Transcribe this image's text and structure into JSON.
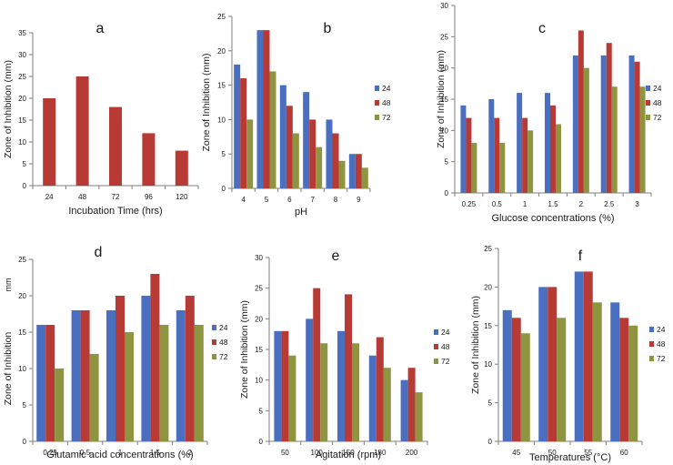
{
  "colors": {
    "s24": "#4a6fc1",
    "s48": "#b83a35",
    "s72": "#8f9440",
    "axis": "#7f7f7f",
    "text": "#1a1a1a"
  },
  "chart_data": [
    {
      "id": "a",
      "type": "bar",
      "panel_label": "a",
      "xlabel": "Incubation Time (hrs)",
      "ylabel": "Zone of Inhibition (mm)",
      "categories": [
        "24",
        "48",
        "72",
        "96",
        "120"
      ],
      "yticks": [
        "0",
        "5",
        "10",
        "15",
        "20",
        "25",
        "30",
        "35"
      ],
      "ylim": [
        0,
        35
      ],
      "legend": [],
      "series": [
        {
          "name": "",
          "color": "#b83a35",
          "values": [
            20,
            25,
            18,
            12,
            8
          ]
        }
      ]
    },
    {
      "id": "b",
      "type": "bar",
      "panel_label": "b",
      "xlabel": "pH",
      "ylabel": "Zone of Inhibition (mm)",
      "categories": [
        "4",
        "5",
        "6",
        "7",
        "8",
        "9"
      ],
      "yticks": [
        "0",
        "5",
        "10",
        "15",
        "20",
        "25"
      ],
      "ylim": [
        0,
        25
      ],
      "legend": [
        "24",
        "48",
        "72"
      ],
      "series": [
        {
          "name": "24",
          "color": "#4a6fc1",
          "values": [
            18,
            23,
            15,
            14,
            10,
            5
          ]
        },
        {
          "name": "48",
          "color": "#b83a35",
          "values": [
            16,
            23,
            12,
            10,
            8,
            5
          ]
        },
        {
          "name": "72",
          "color": "#8f9440",
          "values": [
            10,
            17,
            8,
            6,
            4,
            3
          ]
        }
      ]
    },
    {
      "id": "c",
      "type": "bar",
      "panel_label": "c",
      "xlabel": "Glucose concentrations (%)",
      "ylabel": "Zone of Inhibition (mm)",
      "categories": [
        "0.25",
        "0.5",
        "1",
        "1.5",
        "2",
        "2.5",
        "3"
      ],
      "yticks": [
        "0",
        "5",
        "10",
        "15",
        "20",
        "25",
        "30"
      ],
      "ylim": [
        0,
        30
      ],
      "legend": [
        "24",
        "48",
        "72"
      ],
      "series": [
        {
          "name": "24",
          "color": "#4a6fc1",
          "values": [
            14,
            15,
            16,
            16,
            22,
            22,
            22
          ]
        },
        {
          "name": "48",
          "color": "#b83a35",
          "values": [
            12,
            12,
            12,
            14,
            26,
            24,
            21
          ]
        },
        {
          "name": "72",
          "color": "#8f9440",
          "values": [
            8,
            8,
            10,
            11,
            20,
            17,
            17
          ]
        }
      ]
    },
    {
      "id": "d",
      "type": "bar",
      "panel_label": "d",
      "xlabel": "Glutamic acid concentrations (%)",
      "ylabel": "Zone of Inhibition",
      "unit_label": "mm",
      "categories": [
        "0.25",
        "0.5",
        "1",
        "1.5",
        "2"
      ],
      "yticks": [
        "0",
        "5",
        "10",
        "15",
        "20",
        "25"
      ],
      "ylim": [
        0,
        25
      ],
      "legend": [
        "24",
        "48",
        "72"
      ],
      "series": [
        {
          "name": "24",
          "color": "#4a6fc1",
          "values": [
            16,
            18,
            18,
            20,
            18
          ]
        },
        {
          "name": "48",
          "color": "#b83a35",
          "values": [
            16,
            18,
            20,
            23,
            20
          ]
        },
        {
          "name": "72",
          "color": "#8f9440",
          "values": [
            10,
            12,
            15,
            16,
            16
          ]
        }
      ]
    },
    {
      "id": "e",
      "type": "bar",
      "panel_label": "e",
      "xlabel": "Agitation (rpm)",
      "ylabel": "Zone of Inhibition (mm)",
      "categories": [
        "50",
        "100",
        "150",
        "180",
        "200"
      ],
      "yticks": [
        "0",
        "5",
        "10",
        "15",
        "20",
        "25",
        "30"
      ],
      "ylim": [
        0,
        30
      ],
      "legend": [
        "24",
        "48",
        "72"
      ],
      "series": [
        {
          "name": "24",
          "color": "#4a6fc1",
          "values": [
            18,
            20,
            18,
            14,
            10
          ]
        },
        {
          "name": "48",
          "color": "#b83a35",
          "values": [
            18,
            25,
            24,
            17,
            12
          ]
        },
        {
          "name": "72",
          "color": "#8f9440",
          "values": [
            14,
            16,
            16,
            12,
            8
          ]
        }
      ]
    },
    {
      "id": "f",
      "type": "bar",
      "panel_label": "f",
      "xlabel": "Temperatures (°C)",
      "ylabel": "Zone of Inhibition (mm)",
      "categories": [
        "45",
        "50",
        "55",
        "60"
      ],
      "yticks": [
        "0",
        "5",
        "10",
        "15",
        "20",
        "25"
      ],
      "ylim": [
        0,
        25
      ],
      "legend": [
        "24",
        "48",
        "72"
      ],
      "series": [
        {
          "name": "24",
          "color": "#4a6fc1",
          "values": [
            17,
            20,
            22,
            18
          ]
        },
        {
          "name": "48",
          "color": "#b83a35",
          "values": [
            16,
            20,
            22,
            16
          ]
        },
        {
          "name": "72",
          "color": "#8f9440",
          "values": [
            14,
            16,
            18,
            15
          ]
        }
      ]
    }
  ]
}
